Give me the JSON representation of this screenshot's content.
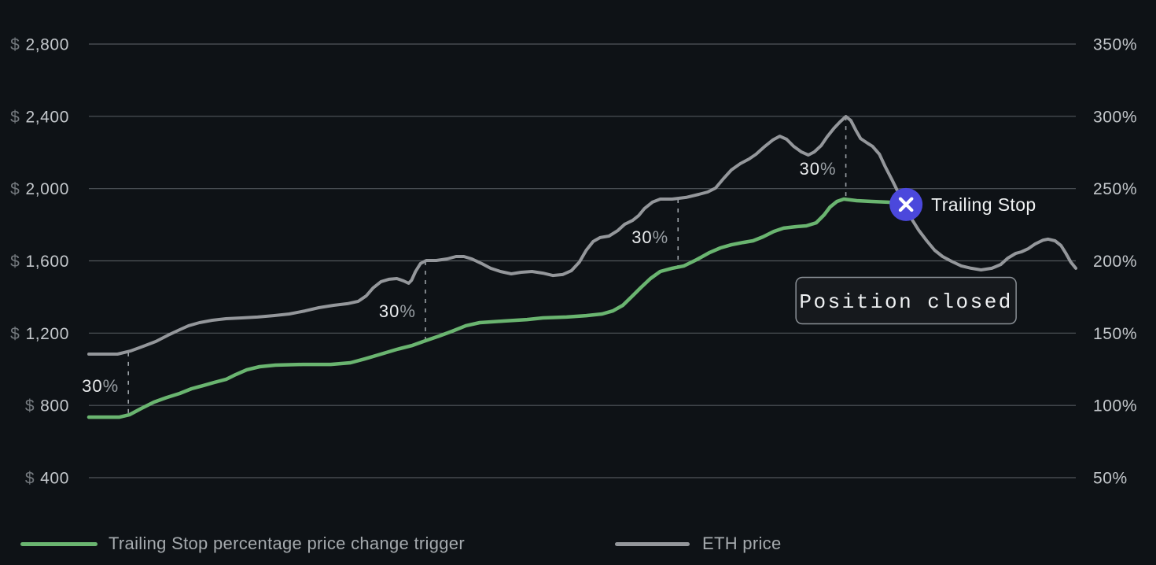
{
  "theme": {
    "background": "#0e1216",
    "grid_color": "#51565b",
    "tick_color": "#c3c7cb",
    "tick_dim_color": "#73787d",
    "trigger_line_color": "#9aa0a5",
    "trigger_label_color": "#e8eaec",
    "trigger_label_dim_color": "#979da2",
    "legend_text_color": "#a5aaae",
    "callout_border_color": "#898f95",
    "callout_bg_color": "#16191d",
    "callout_text_color": "#eef0f2",
    "marker_color": "#4b48dc",
    "marker_icon_color": "#ffffff",
    "trailing_stop_label_color": "#f0f2f3",
    "trailing_stop_series_color": "#6ab570",
    "eth_series_color": "#94979b"
  },
  "legend": {
    "items": [
      {
        "label": "Trailing Stop percentage price change trigger",
        "color": "#6ab570"
      },
      {
        "label": "ETH price",
        "color": "#94979b"
      }
    ]
  },
  "chart_data": {
    "type": "line",
    "grid": true,
    "y_axis_left": {
      "currency": "$",
      "min": 400,
      "max": 2800,
      "ticks": [
        {
          "currency": "$",
          "label": "2,800",
          "value": 2800
        },
        {
          "currency": "$",
          "label": "2,400",
          "value": 2400
        },
        {
          "currency": "$",
          "label": "2,000",
          "value": 2000
        },
        {
          "currency": "$",
          "label": "1,600",
          "value": 1600
        },
        {
          "currency": "$",
          "label": "1,200",
          "value": 1200
        },
        {
          "currency": "$",
          "label": "800",
          "value": 800
        },
        {
          "currency": "$",
          "label": "400",
          "value": 400
        }
      ]
    },
    "y_axis_right": {
      "min": 50,
      "max": 350,
      "ticks": [
        {
          "label": "350%",
          "value": 350
        },
        {
          "label": "300%",
          "value": 300
        },
        {
          "label": "250%",
          "value": 250
        },
        {
          "label": "200%",
          "value": 200
        },
        {
          "label": "150%",
          "value": 150
        },
        {
          "label": "100%",
          "value": 100
        },
        {
          "label": "50%",
          "value": 50
        }
      ]
    },
    "series": [
      {
        "name": "Trailing Stop percentage price change trigger",
        "color": "#6ab570",
        "points": [
          [
            0,
            735
          ],
          [
            3.1,
            735
          ],
          [
            4.1,
            748
          ],
          [
            5.3,
            783
          ],
          [
            6.6,
            818
          ],
          [
            7.9,
            844
          ],
          [
            9.2,
            866
          ],
          [
            10.4,
            892
          ],
          [
            11.6,
            910
          ],
          [
            12.7,
            927
          ],
          [
            13.9,
            944
          ],
          [
            14.9,
            971
          ],
          [
            16.0,
            997
          ],
          [
            17.3,
            1014
          ],
          [
            18.9,
            1023
          ],
          [
            21.7,
            1027
          ],
          [
            24.5,
            1027
          ],
          [
            26.5,
            1036
          ],
          [
            28.0,
            1058
          ],
          [
            29.6,
            1084
          ],
          [
            31.2,
            1110
          ],
          [
            32.8,
            1132
          ],
          [
            34.1,
            1158
          ],
          [
            35.5,
            1184
          ],
          [
            36.8,
            1210
          ],
          [
            38.2,
            1241
          ],
          [
            39.6,
            1258
          ],
          [
            42.0,
            1267
          ],
          [
            44.4,
            1275
          ],
          [
            46.0,
            1284
          ],
          [
            48.4,
            1289
          ],
          [
            50.4,
            1297
          ],
          [
            52.0,
            1306
          ],
          [
            53.1,
            1323
          ],
          [
            54.1,
            1354
          ],
          [
            55.0,
            1402
          ],
          [
            55.9,
            1450
          ],
          [
            56.9,
            1502
          ],
          [
            57.9,
            1541
          ],
          [
            59.1,
            1559
          ],
          [
            60.3,
            1572
          ],
          [
            61.6,
            1607
          ],
          [
            62.9,
            1646
          ],
          [
            64.0,
            1672
          ],
          [
            65.1,
            1689
          ],
          [
            66.3,
            1702
          ],
          [
            67.3,
            1711
          ],
          [
            68.3,
            1733
          ],
          [
            69.4,
            1763
          ],
          [
            70.4,
            1781
          ],
          [
            71.6,
            1789
          ],
          [
            72.7,
            1794
          ],
          [
            73.7,
            1811
          ],
          [
            74.5,
            1855
          ],
          [
            75.1,
            1898
          ],
          [
            75.8,
            1929
          ],
          [
            76.5,
            1942
          ],
          [
            77.8,
            1933
          ],
          [
            79.3,
            1929
          ],
          [
            80.9,
            1925
          ],
          [
            82.6,
            1920
          ]
        ]
      },
      {
        "name": "ETH price",
        "color": "#94979b",
        "points": [
          [
            0,
            1084
          ],
          [
            2.9,
            1084
          ],
          [
            4.2,
            1101
          ],
          [
            5.5,
            1127
          ],
          [
            6.8,
            1154
          ],
          [
            8.0,
            1188
          ],
          [
            9.2,
            1219
          ],
          [
            10.1,
            1241
          ],
          [
            11.2,
            1258
          ],
          [
            12.5,
            1271
          ],
          [
            13.9,
            1280
          ],
          [
            15.5,
            1284
          ],
          [
            17.1,
            1289
          ],
          [
            18.7,
            1297
          ],
          [
            20.3,
            1306
          ],
          [
            21.9,
            1323
          ],
          [
            23.3,
            1341
          ],
          [
            24.8,
            1354
          ],
          [
            26.2,
            1363
          ],
          [
            27.3,
            1376
          ],
          [
            28.1,
            1406
          ],
          [
            28.8,
            1450
          ],
          [
            29.6,
            1485
          ],
          [
            30.4,
            1498
          ],
          [
            31.2,
            1502
          ],
          [
            31.9,
            1489
          ],
          [
            32.4,
            1476
          ],
          [
            32.7,
            1493
          ],
          [
            33.1,
            1541
          ],
          [
            33.6,
            1585
          ],
          [
            34.2,
            1602
          ],
          [
            35.2,
            1602
          ],
          [
            36.3,
            1611
          ],
          [
            37.2,
            1624
          ],
          [
            38.0,
            1624
          ],
          [
            38.8,
            1611
          ],
          [
            39.8,
            1585
          ],
          [
            40.7,
            1559
          ],
          [
            41.7,
            1541
          ],
          [
            42.8,
            1528
          ],
          [
            43.8,
            1537
          ],
          [
            44.9,
            1541
          ],
          [
            46.0,
            1532
          ],
          [
            47.0,
            1519
          ],
          [
            48.0,
            1524
          ],
          [
            48.9,
            1546
          ],
          [
            49.7,
            1593
          ],
          [
            50.4,
            1659
          ],
          [
            51.1,
            1707
          ],
          [
            51.8,
            1729
          ],
          [
            52.7,
            1737
          ],
          [
            53.6,
            1768
          ],
          [
            54.3,
            1803
          ],
          [
            55.1,
            1824
          ],
          [
            55.7,
            1850
          ],
          [
            56.3,
            1890
          ],
          [
            57.1,
            1925
          ],
          [
            57.9,
            1942
          ],
          [
            59.1,
            1942
          ],
          [
            60.5,
            1951
          ],
          [
            61.8,
            1968
          ],
          [
            62.7,
            1981
          ],
          [
            63.5,
            2003
          ],
          [
            64.3,
            2055
          ],
          [
            65.1,
            2103
          ],
          [
            66.0,
            2138
          ],
          [
            66.9,
            2164
          ],
          [
            67.6,
            2190
          ],
          [
            68.5,
            2234
          ],
          [
            69.3,
            2269
          ],
          [
            70.0,
            2290
          ],
          [
            70.7,
            2273
          ],
          [
            71.4,
            2234
          ],
          [
            72.2,
            2203
          ],
          [
            72.9,
            2186
          ],
          [
            73.5,
            2203
          ],
          [
            74.2,
            2238
          ],
          [
            74.8,
            2286
          ],
          [
            75.5,
            2334
          ],
          [
            76.1,
            2369
          ],
          [
            76.7,
            2399
          ],
          [
            77.2,
            2377
          ],
          [
            77.7,
            2325
          ],
          [
            78.2,
            2277
          ],
          [
            78.9,
            2251
          ],
          [
            79.4,
            2234
          ],
          [
            80.1,
            2190
          ],
          [
            80.7,
            2120
          ],
          [
            81.4,
            2046
          ],
          [
            82.1,
            1968
          ],
          [
            82.8,
            1898
          ],
          [
            83.4,
            1829
          ],
          [
            84.1,
            1768
          ],
          [
            84.9,
            1711
          ],
          [
            85.7,
            1659
          ],
          [
            86.5,
            1624
          ],
          [
            87.4,
            1598
          ],
          [
            88.4,
            1572
          ],
          [
            89.4,
            1559
          ],
          [
            90.4,
            1550
          ],
          [
            91.5,
            1559
          ],
          [
            92.4,
            1580
          ],
          [
            93.1,
            1615
          ],
          [
            93.9,
            1641
          ],
          [
            94.5,
            1650
          ],
          [
            95.2,
            1668
          ],
          [
            95.9,
            1694
          ],
          [
            96.7,
            1715
          ],
          [
            97.2,
            1720
          ],
          [
            97.9,
            1711
          ],
          [
            98.5,
            1685
          ],
          [
            99.0,
            1641
          ],
          [
            99.5,
            1593
          ],
          [
            100,
            1559
          ]
        ]
      }
    ],
    "trigger_events": [
      {
        "label": "30%",
        "x_pct": 4.0,
        "price_top": 1093,
        "price_bottom": 745
      },
      {
        "label": "30%",
        "x_pct": 34.1,
        "price_top": 1598,
        "price_bottom": 1158
      },
      {
        "label": "30%",
        "x_pct": 59.7,
        "price_top": 1942,
        "price_bottom": 1567
      },
      {
        "label": "30%",
        "x_pct": 76.7,
        "price_top": 2399,
        "price_bottom": 1946
      }
    ],
    "stop_marker": {
      "label": "Trailing Stop",
      "x_pct": 82.8,
      "price": 1912
    },
    "position_label": {
      "text": "Position closed",
      "x_pct": 82.8,
      "price": 1380
    }
  }
}
